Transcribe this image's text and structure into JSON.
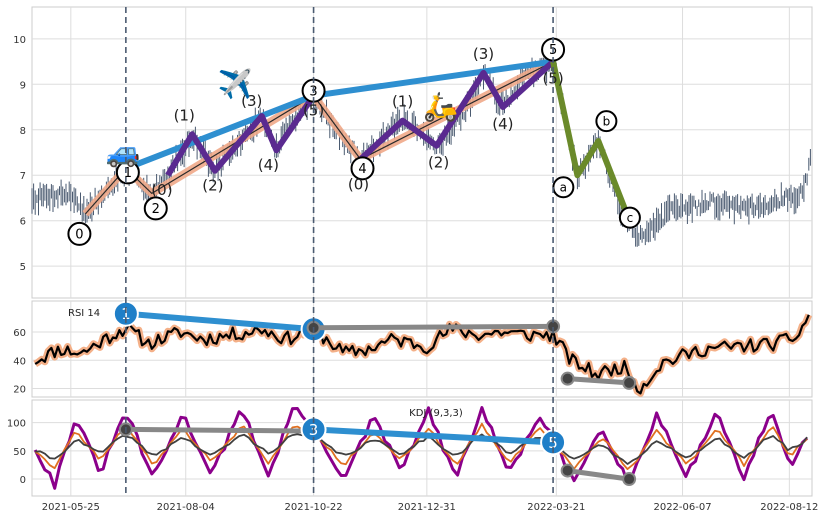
{
  "chart_data": [
    {
      "panel": "price",
      "type": "line",
      "style": "daily OHLC candlesticks (thin dark blue-grey) with Elliott wave annotations",
      "x": [
        "2021-05-25",
        "2021-08-04",
        "2021-10-22",
        "2021-12-31",
        "2022-03-21",
        "2022-06-07",
        "2022-08-12"
      ],
      "xtick_labels": [
        "2021-05-25",
        "2021-08-04",
        "2021-10-22",
        "2021-12-31",
        "2022-03-21",
        "2022-06-07",
        "2022-08-12"
      ],
      "x_range": [
        "2021-05-01",
        "2022-08-26"
      ],
      "ylim": [
        4.3,
        10.7
      ],
      "yticks": [
        5,
        6,
        7,
        8,
        9,
        10
      ],
      "ytick_labels": [
        "5",
        "6",
        "7",
        "8",
        "9",
        "10"
      ],
      "grid": true,
      "price_path": [
        [
          "2021-05-01",
          6.5
        ],
        [
          "2021-05-20",
          6.6
        ],
        [
          "2021-05-28",
          6.5
        ],
        [
          "2021-06-03",
          6.15
        ],
        [
          "2021-06-15",
          6.6
        ],
        [
          "2021-06-28",
          7.15
        ],
        [
          "2021-07-06",
          6.9
        ],
        [
          "2021-07-14",
          6.6
        ],
        [
          "2021-07-24",
          7.0
        ],
        [
          "2021-08-08",
          7.9
        ],
        [
          "2021-08-22",
          7.1
        ],
        [
          "2021-09-08",
          7.8
        ],
        [
          "2021-09-20",
          8.3
        ],
        [
          "2021-09-29",
          7.55
        ],
        [
          "2021-10-08",
          8.2
        ],
        [
          "2021-10-22",
          8.75
        ],
        [
          "2021-11-08",
          7.8
        ],
        [
          "2021-11-20",
          7.35
        ],
        [
          "2021-12-05",
          7.9
        ],
        [
          "2021-12-16",
          8.2
        ],
        [
          "2022-01-06",
          7.65
        ],
        [
          "2022-01-22",
          8.3
        ],
        [
          "2022-02-04",
          9.25
        ],
        [
          "2022-02-16",
          8.5
        ],
        [
          "2022-03-01",
          9.2
        ],
        [
          "2022-03-19",
          9.5
        ],
        [
          "2022-04-03",
          7.0
        ],
        [
          "2022-04-16",
          7.75
        ],
        [
          "2022-04-30",
          6.25
        ],
        [
          "2022-05-10",
          5.6
        ],
        [
          "2022-05-30",
          6.2
        ],
        [
          "2022-06-25",
          6.4
        ],
        [
          "2022-07-20",
          6.3
        ],
        [
          "2022-08-10",
          6.5
        ],
        [
          "2022-08-20",
          6.6
        ],
        [
          "2022-08-25",
          7.3
        ]
      ],
      "elliott": {
        "main_wave": [
          [
            "2021-06-03",
            6.15
          ],
          [
            "2021-06-28",
            7.15
          ],
          [
            "2021-07-14",
            6.6
          ],
          [
            "2021-10-22",
            8.75
          ],
          [
            "2021-11-20",
            7.35
          ],
          [
            "2022-03-19",
            9.5
          ]
        ],
        "main_wave_labels": [
          "0",
          "1",
          "2",
          "3",
          "4",
          "5"
        ],
        "trend_line": [
          [
            "2021-06-28",
            7.15
          ],
          [
            "2021-10-22",
            8.75
          ],
          [
            "2022-03-19",
            9.5
          ]
        ],
        "sub_wave_1": [
          [
            "2021-07-24",
            7.0
          ],
          [
            "2021-08-08",
            7.9
          ],
          [
            "2021-08-22",
            7.1
          ],
          [
            "2021-09-20",
            8.3
          ],
          [
            "2021-09-29",
            7.55
          ],
          [
            "2021-10-22",
            8.75
          ]
        ],
        "sub_wave_2": [
          [
            "2021-11-20",
            7.35
          ],
          [
            "2021-12-16",
            8.2
          ],
          [
            "2022-01-06",
            7.65
          ],
          [
            "2022-02-04",
            9.25
          ],
          [
            "2022-02-16",
            8.5
          ],
          [
            "2022-03-19",
            9.5
          ]
        ],
        "sub_wave_labels": [
          "(0)",
          "(1)",
          "(2)",
          "(3)",
          "(4)",
          "(5)"
        ],
        "correction": [
          [
            "2022-03-19",
            9.5
          ],
          [
            "2022-04-03",
            7.0
          ],
          [
            "2022-04-16",
            7.75
          ],
          [
            "2022-05-03",
            6.2
          ]
        ],
        "correction_labels": [
          "a",
          "b",
          "c"
        ]
      },
      "icons": [
        "car-emoji",
        "airplane-emoji",
        "scooter-emoji"
      ],
      "colors": {
        "candles": "#4a5a70",
        "trend": "#2e8fd0",
        "wave": "#f0a888",
        "sub_wave": "#5a2a90",
        "correction": "#6a8a2a",
        "vlines": "#4a5a70"
      }
    },
    {
      "panel": "rsi",
      "type": "line",
      "title": "RSI 14",
      "ylim": [
        14,
        82
      ],
      "yticks": [
        20,
        40,
        60
      ],
      "ytick_labels": [
        "20",
        "40",
        "60"
      ],
      "grid": true,
      "points": [
        [
          "2021-05-03",
          40
        ],
        [
          "2021-05-18",
          48
        ],
        [
          "2021-06-01",
          45
        ],
        [
          "2021-06-15",
          55
        ],
        [
          "2021-06-28",
          63
        ],
        [
          "2021-07-12",
          52
        ],
        [
          "2021-08-01",
          60
        ],
        [
          "2021-08-15",
          55
        ],
        [
          "2021-09-01",
          58
        ],
        [
          "2021-09-20",
          62
        ],
        [
          "2021-10-05",
          55
        ],
        [
          "2021-10-22",
          62
        ],
        [
          "2021-11-10",
          45
        ],
        [
          "2021-11-25",
          48
        ],
        [
          "2021-12-10",
          55
        ],
        [
          "2021-12-31",
          50
        ],
        [
          "2022-01-15",
          62
        ],
        [
          "2022-02-01",
          58
        ],
        [
          "2022-02-15",
          60
        ],
        [
          "2022-03-01",
          58
        ],
        [
          "2022-03-19",
          58
        ],
        [
          "2022-03-30",
          40
        ],
        [
          "2022-04-15",
          30
        ],
        [
          "2022-05-01",
          36
        ],
        [
          "2022-05-12",
          20
        ],
        [
          "2022-05-25",
          38
        ],
        [
          "2022-06-20",
          48
        ],
        [
          "2022-07-15",
          50
        ],
        [
          "2022-08-05",
          52
        ],
        [
          "2022-08-18",
          58
        ],
        [
          "2022-08-25",
          75
        ]
      ],
      "divergence_lines": [
        {
          "points": [
            [
              "2021-06-28",
              73
            ],
            [
              "2021-10-22",
              62
            ]
          ],
          "labels": [
            "1",
            "3"
          ],
          "color": "#2e8fd0"
        },
        {
          "points": [
            [
              "2021-10-22",
              63
            ],
            [
              "2022-03-19",
              64
            ]
          ],
          "color": "#888888"
        },
        {
          "points": [
            [
              "2022-03-28",
              27
            ],
            [
              "2022-05-05",
              24
            ]
          ],
          "color": "#888888"
        }
      ],
      "colors": {
        "line": "#000000",
        "halo": "#f4b088"
      }
    },
    {
      "panel": "kdj",
      "type": "line",
      "title": "KDJ (9,3,3)",
      "ylim": [
        -30,
        140
      ],
      "yticks": [
        0,
        50,
        100
      ],
      "ytick_labels": [
        "0",
        "50",
        "100"
      ],
      "grid": true,
      "series": [
        {
          "key": "J",
          "color": "#8b008b",
          "points": [
            [
              "2021-05-03",
              55
            ],
            [
              "2021-05-15",
              -10
            ],
            [
              "2021-05-28",
              110
            ],
            [
              "2021-06-12",
              10
            ],
            [
              "2021-06-28",
              120
            ],
            [
              "2021-07-15",
              0
            ],
            [
              "2021-08-02",
              115
            ],
            [
              "2021-08-20",
              10
            ],
            [
              "2021-09-08",
              125
            ],
            [
              "2021-09-24",
              5
            ],
            [
              "2021-10-10",
              130
            ],
            [
              "2021-10-22",
              90
            ],
            [
              "2021-11-10",
              0
            ],
            [
              "2021-11-28",
              110
            ],
            [
              "2021-12-15",
              15
            ],
            [
              "2022-01-01",
              120
            ],
            [
              "2022-01-18",
              0
            ],
            [
              "2022-02-03",
              125
            ],
            [
              "2022-02-20",
              10
            ],
            [
              "2022-03-10",
              110
            ],
            [
              "2022-03-19",
              70
            ],
            [
              "2022-04-01",
              -5
            ],
            [
              "2022-04-18",
              95
            ],
            [
              "2022-05-05",
              -10
            ],
            [
              "2022-05-22",
              115
            ],
            [
              "2022-06-10",
              5
            ],
            [
              "2022-06-28",
              120
            ],
            [
              "2022-07-15",
              0
            ],
            [
              "2022-08-01",
              125
            ],
            [
              "2022-08-12",
              20
            ],
            [
              "2022-08-25",
              90
            ]
          ]
        },
        {
          "key": "K",
          "color": "#e07020",
          "points": [
            [
              "2021-05-03",
              50
            ],
            [
              "2021-05-15",
              20
            ],
            [
              "2021-05-28",
              85
            ],
            [
              "2021-06-12",
              35
            ],
            [
              "2021-06-28",
              95
            ],
            [
              "2021-07-15",
              25
            ],
            [
              "2021-08-02",
              90
            ],
            [
              "2021-08-20",
              30
            ],
            [
              "2021-09-08",
              95
            ],
            [
              "2021-09-24",
              30
            ],
            [
              "2021-10-10",
              95
            ],
            [
              "2021-10-22",
              80
            ],
            [
              "2021-11-10",
              25
            ],
            [
              "2021-11-28",
              85
            ],
            [
              "2021-12-15",
              35
            ],
            [
              "2022-01-01",
              90
            ],
            [
              "2022-01-18",
              25
            ],
            [
              "2022-02-03",
              95
            ],
            [
              "2022-02-20",
              30
            ],
            [
              "2022-03-10",
              90
            ],
            [
              "2022-03-19",
              65
            ],
            [
              "2022-04-01",
              20
            ],
            [
              "2022-04-18",
              75
            ],
            [
              "2022-05-05",
              15
            ],
            [
              "2022-05-22",
              85
            ],
            [
              "2022-06-10",
              25
            ],
            [
              "2022-06-28",
              90
            ],
            [
              "2022-07-15",
              25
            ],
            [
              "2022-08-01",
              95
            ],
            [
              "2022-08-12",
              40
            ],
            [
              "2022-08-25",
              80
            ]
          ]
        },
        {
          "key": "D",
          "color": "#404040",
          "points": [
            [
              "2021-05-03",
              50
            ],
            [
              "2021-05-15",
              35
            ],
            [
              "2021-05-28",
              70
            ],
            [
              "2021-06-12",
              45
            ],
            [
              "2021-06-28",
              80
            ],
            [
              "2021-07-15",
              40
            ],
            [
              "2021-08-02",
              75
            ],
            [
              "2021-08-20",
              40
            ],
            [
              "2021-09-08",
              80
            ],
            [
              "2021-09-24",
              45
            ],
            [
              "2021-10-10",
              80
            ],
            [
              "2021-10-22",
              75
            ],
            [
              "2021-11-10",
              40
            ],
            [
              "2021-11-28",
              70
            ],
            [
              "2021-12-15",
              45
            ],
            [
              "2022-01-01",
              75
            ],
            [
              "2022-01-18",
              40
            ],
            [
              "2022-02-03",
              80
            ],
            [
              "2022-02-20",
              45
            ],
            [
              "2022-03-10",
              75
            ],
            [
              "2022-03-19",
              65
            ],
            [
              "2022-04-01",
              35
            ],
            [
              "2022-04-18",
              60
            ],
            [
              "2022-05-05",
              25
            ],
            [
              "2022-05-22",
              70
            ],
            [
              "2022-06-10",
              35
            ],
            [
              "2022-06-28",
              75
            ],
            [
              "2022-07-15",
              35
            ],
            [
              "2022-08-01",
              80
            ],
            [
              "2022-08-12",
              50
            ],
            [
              "2022-08-25",
              75
            ]
          ]
        }
      ],
      "divergence_lines": [
        {
          "points": [
            [
              "2021-06-28",
              88
            ],
            [
              "2021-10-22",
              85
            ]
          ],
          "color": "#888888"
        },
        {
          "points": [
            [
              "2021-10-22",
              88
            ],
            [
              "2022-03-19",
              65
            ]
          ],
          "labels": [
            "3",
            "5"
          ],
          "color": "#2e8fd0"
        },
        {
          "points": [
            [
              "2022-03-28",
              15
            ],
            [
              "2022-05-05",
              0
            ]
          ],
          "color": "#888888"
        }
      ]
    }
  ]
}
